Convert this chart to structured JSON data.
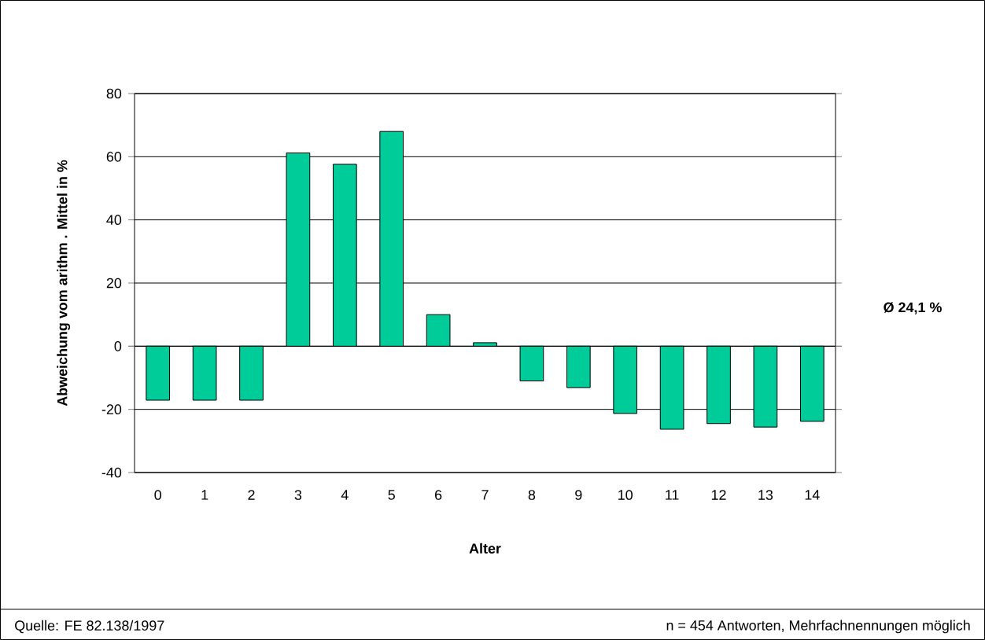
{
  "chart_data": {
    "type": "bar",
    "xlabel": "Alter",
    "ylabel": "Abweichung vom    arithm .   Mittel in %",
    "categories": [
      "0",
      "1",
      "2",
      "3",
      "4",
      "5",
      "6",
      "7",
      "8",
      "9",
      "10",
      "11",
      "12",
      "13",
      "14"
    ],
    "values": [
      -17.1,
      -17.1,
      -17.1,
      61.2,
      57.6,
      68.0,
      10.0,
      1.1,
      -11.0,
      -13.1,
      -21.3,
      -26.3,
      -24.5,
      -25.6,
      -23.8
    ],
    "color": "#00cc99",
    "ylim": [
      -40,
      80
    ],
    "yticks": [
      -40,
      -20,
      0,
      20,
      40,
      60,
      80
    ],
    "grid": "y",
    "annotations": [
      "Ø 24,1 %",
      "Quelle: FE 82.138/1997",
      "n = 454 Antworten, Mehrfachnennungen möglich"
    ]
  }
}
